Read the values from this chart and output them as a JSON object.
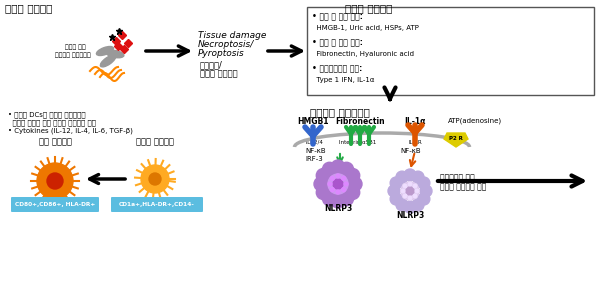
{
  "bg_color": "#ffffff",
  "title_left": "외인성 위험신호",
  "title_center": "내인성 위험신호",
  "title_signal_cascade": "염증증폭 신호전달계",
  "box_content_line1": "• 세포 내 물질 유래:",
  "box_content_line2": "  HMGB-1, Uric acid, HSPs, ATP",
  "box_content_line3": "• 세포 외 기질 유래:",
  "box_content_line4": "  Fibronectin, Hyaluronic acid",
  "box_content_line5": "• 숙주면역반응 유래:",
  "box_content_line6": "  Type 1 IFN, IL-1α",
  "tissue_label1": "Tissue damage",
  "tissue_label2": "Necroptosis/",
  "tissue_label3": "Pyroptosis",
  "tissue_label4": "조직손상/",
  "tissue_label5": "염증성 세포죽음",
  "bacteria_label1": "병원성 세균",
  "bacteria_label2": "세균유래 외부인자군",
  "bullet1": "• 증가된 DCs의 성숙은 치주환경의",
  "bullet2": "  항상성 파괴로 인한 과도한 염증반응 증가",
  "bullet3": "• Cytokines (IL-12, IL-4, IL-6, TGF-β)",
  "mature_dc": "성숙 가지세포",
  "immature_dc": "미성숙 가지세포",
  "mature_markers": "CD80+,CD86+, HLA-DR+",
  "immature_markers": "CD1a+,HLA-DR+,CD14-",
  "hmgb1_label": "HMGB1",
  "fibronectin_label": "Fibronectin",
  "il1a_label": "IL-1α",
  "atp_label": "ATP(adenosine)",
  "tlr_label": "TLR2/4",
  "integrin_label": "Integrin α5β1",
  "il1r_label": "IL-1R",
  "p2r_label": "P2 R",
  "nfkb1_label": "NF-κB",
  "irf3_label": "IRF-3",
  "nfkb2_label": "NF-κB",
  "nlrp3_1_label": "NLRP3",
  "nlrp3_2_label": "NLRP3",
  "result_label1": "염증매개자 증가",
  "result_label2": "염증성 세포죽음 증가",
  "marker_box_color": "#5bbde0",
  "box_border_color": "#555555",
  "tlr_color": "#3366cc",
  "integrin_color": "#22aa44",
  "il1r_color": "#dd5500",
  "p2r_color": "#ddcc00"
}
